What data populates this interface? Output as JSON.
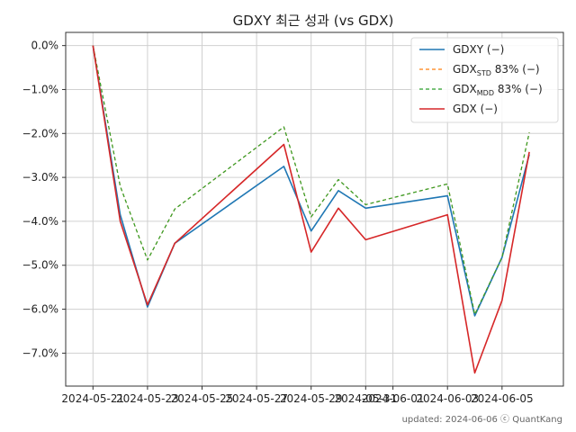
{
  "chart_data": {
    "type": "line",
    "title": "GDXY 최근 성과 (vs GDX)",
    "xlabel": "",
    "ylabel": "",
    "ylim": [
      -7.75,
      0.3
    ],
    "grid": true,
    "legend_position": "top-right",
    "x": [
      "2024-05-21",
      "2024-05-22",
      "2024-05-23",
      "2024-05-24",
      "2024-05-28",
      "2024-05-29",
      "2024-05-30",
      "2024-05-31",
      "2024-06-03",
      "2024-06-04",
      "2024-06-05",
      "2024-06-06"
    ],
    "x_ticks": [
      "2024-05-21",
      "2024-05-23",
      "2024-05-25",
      "2024-05-27",
      "2024-05-29",
      "2024-05-31",
      "2024-06-01",
      "2024-06-03",
      "2024-06-05"
    ],
    "x_tick_labels": [
      "2024-05-21",
      "2024-05-23",
      "2024-05-25",
      "2024-05-27",
      "2024-05-29",
      "2024-05-31",
      "2024-06-01",
      "2024-06-03",
      "2024-06-05"
    ],
    "y_ticks": [
      0,
      -1,
      -2,
      -3,
      -4,
      -5,
      -6,
      -7
    ],
    "y_tick_labels": [
      "0.0%",
      "−1.0%",
      "−2.0%",
      "−3.0%",
      "−4.0%",
      "−5.0%",
      "−6.0%",
      "−7.0%"
    ],
    "series": [
      {
        "name": "GDXY (−)",
        "label_main": "GDXY (−)",
        "label_sub": "",
        "label_rest": "",
        "color": "#1f77b4",
        "dash": "",
        "width": 1.6,
        "values": [
          0.0,
          -3.85,
          -5.95,
          -4.5,
          -2.75,
          -4.22,
          -3.3,
          -3.7,
          -3.42,
          -6.15,
          -4.82,
          -2.48
        ]
      },
      {
        "name": "GDXSTD 83% (−)",
        "label_main": "GDX",
        "label_sub": "STD",
        "label_rest": " 83% (−)",
        "color": "#ff7f0e",
        "dash": "4,3",
        "width": 1.2,
        "values": [
          0.0,
          -3.2,
          -4.88,
          -3.72,
          -1.85,
          -3.9,
          -3.05,
          -3.62,
          -3.15,
          -6.12,
          -4.82,
          -1.98
        ]
      },
      {
        "name": "GDXMDD 83% (−)",
        "label_main": "GDX",
        "label_sub": "MDD",
        "label_rest": " 83% (−)",
        "color": "#2ca02c",
        "dash": "4,3",
        "width": 1.2,
        "values": [
          0.0,
          -3.2,
          -4.88,
          -3.72,
          -1.85,
          -3.9,
          -3.05,
          -3.62,
          -3.15,
          -6.12,
          -4.82,
          -1.98
        ]
      },
      {
        "name": "GDX (−)",
        "label_main": "GDX (−)",
        "label_sub": "",
        "label_rest": "",
        "color": "#d62728",
        "dash": "",
        "width": 1.6,
        "values": [
          0.0,
          -4.0,
          -5.9,
          -4.5,
          -2.25,
          -4.7,
          -3.7,
          -4.42,
          -3.85,
          -7.45,
          -5.8,
          -2.42
        ]
      }
    ]
  },
  "footer": "updated: 2024-06-06 ⓒ QuantKang"
}
